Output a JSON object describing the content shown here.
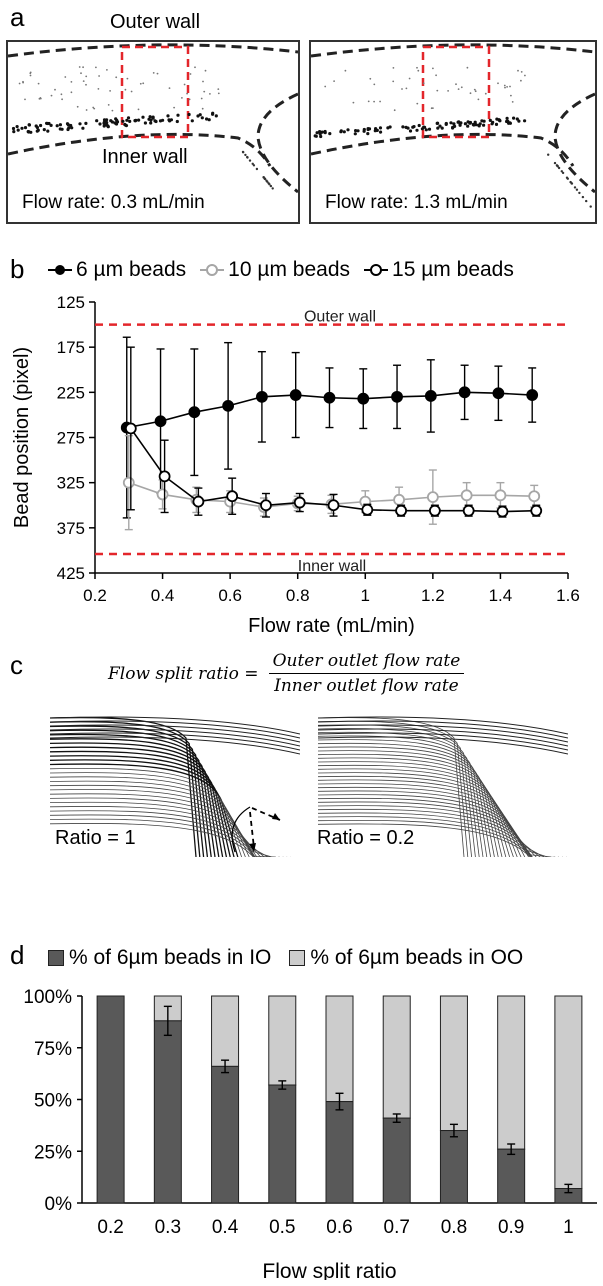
{
  "panel_a": {
    "letter": "a",
    "outer_wall_label": "Outer wall",
    "inner_wall_label": "Inner wall",
    "left_caption": "Flow rate: 0.3 mL/min",
    "right_caption": "Flow rate: 1.3 mL/min"
  },
  "panel_b": {
    "letter": "b",
    "legend": [
      "6 µm beads",
      "10 µm beads",
      "15 µm beads"
    ],
    "outer_wall_label": "Outer wall",
    "inner_wall_label": "Inner wall"
  },
  "panel_c": {
    "letter": "c",
    "eq_lhs": "Flow split ratio =",
    "eq_num": "Outer outlet flow rate",
    "eq_den": "Inner outlet flow rate",
    "left_ratio": "Ratio = 1",
    "right_ratio": "Ratio = 0.2"
  },
  "panel_d": {
    "letter": "d",
    "legend": [
      "% of 6µm beads in IO",
      "% of 6µm beads in OO"
    ]
  },
  "colors": {
    "dashed_red": "#e3262b",
    "bar_dark": "#595959",
    "bar_light": "#cccccc",
    "series_10um": "#a6a6a6"
  },
  "chart_data": [
    {
      "type": "line",
      "xlabel": "Flow rate (mL/min)",
      "ylabel": "Bead position (pixel)",
      "xlim": [
        0.2,
        1.6
      ],
      "ylim": [
        425,
        125
      ],
      "xticks": [
        "0.2",
        "0.4",
        "0.6",
        "0.8",
        "1",
        "1.2",
        "1.4",
        "1.6"
      ],
      "yticks": [
        "125",
        "175",
        "225",
        "275",
        "325",
        "375",
        "425"
      ],
      "x": [
        0.3,
        0.4,
        0.5,
        0.6,
        0.7,
        0.8,
        0.9,
        1.0,
        1.1,
        1.2,
        1.3,
        1.4,
        1.5
      ],
      "reference_lines": [
        {
          "label": "Outer wall",
          "y": 150
        },
        {
          "label": "Inner wall",
          "y": 404
        }
      ],
      "series": [
        {
          "name": "6 µm beads",
          "marker": "filled-circle",
          "values": [
            264,
            257,
            247,
            240,
            230,
            228,
            231,
            232,
            230,
            229,
            225,
            226,
            228
          ],
          "error": [
            100,
            80,
            70,
            70,
            50,
            47,
            33,
            33,
            35,
            40,
            30,
            30,
            30
          ]
        },
        {
          "name": "10 µm beads",
          "marker": "open-circle-gray",
          "values": [
            325,
            338,
            344,
            346,
            352,
            348,
            349,
            346,
            344,
            341,
            339,
            339,
            340
          ],
          "error": [
            52,
            16,
            14,
            12,
            10,
            8,
            10,
            12,
            14,
            30,
            14,
            14,
            12
          ]
        },
        {
          "name": "15 µm beads",
          "marker": "open-circle",
          "values": [
            265,
            318,
            346,
            340,
            350,
            347,
            350,
            355,
            356,
            356,
            356,
            357,
            356
          ],
          "error": [
            90,
            40,
            15,
            20,
            13,
            10,
            12,
            6,
            6,
            6,
            6,
            6,
            6
          ]
        }
      ]
    },
    {
      "type": "bar",
      "stacked": true,
      "xlabel": "Flow split ratio",
      "categories": [
        "0.2",
        "0.3",
        "0.4",
        "0.5",
        "0.6",
        "0.7",
        "0.8",
        "0.9",
        "1"
      ],
      "yticks": [
        "0%",
        "25%",
        "50%",
        "75%",
        "100%"
      ],
      "ylim": [
        0,
        100
      ],
      "series": [
        {
          "name": "% of 6µm beads in IO",
          "values": [
            100,
            88,
            66,
            57,
            49,
            41,
            35,
            26,
            7
          ],
          "error": [
            0,
            7,
            3,
            2,
            4,
            2,
            3,
            2.5,
            2
          ]
        },
        {
          "name": "% of 6µm beads in OO",
          "values": [
            0,
            12,
            34,
            43,
            51,
            59,
            65,
            74,
            93
          ]
        }
      ]
    }
  ]
}
